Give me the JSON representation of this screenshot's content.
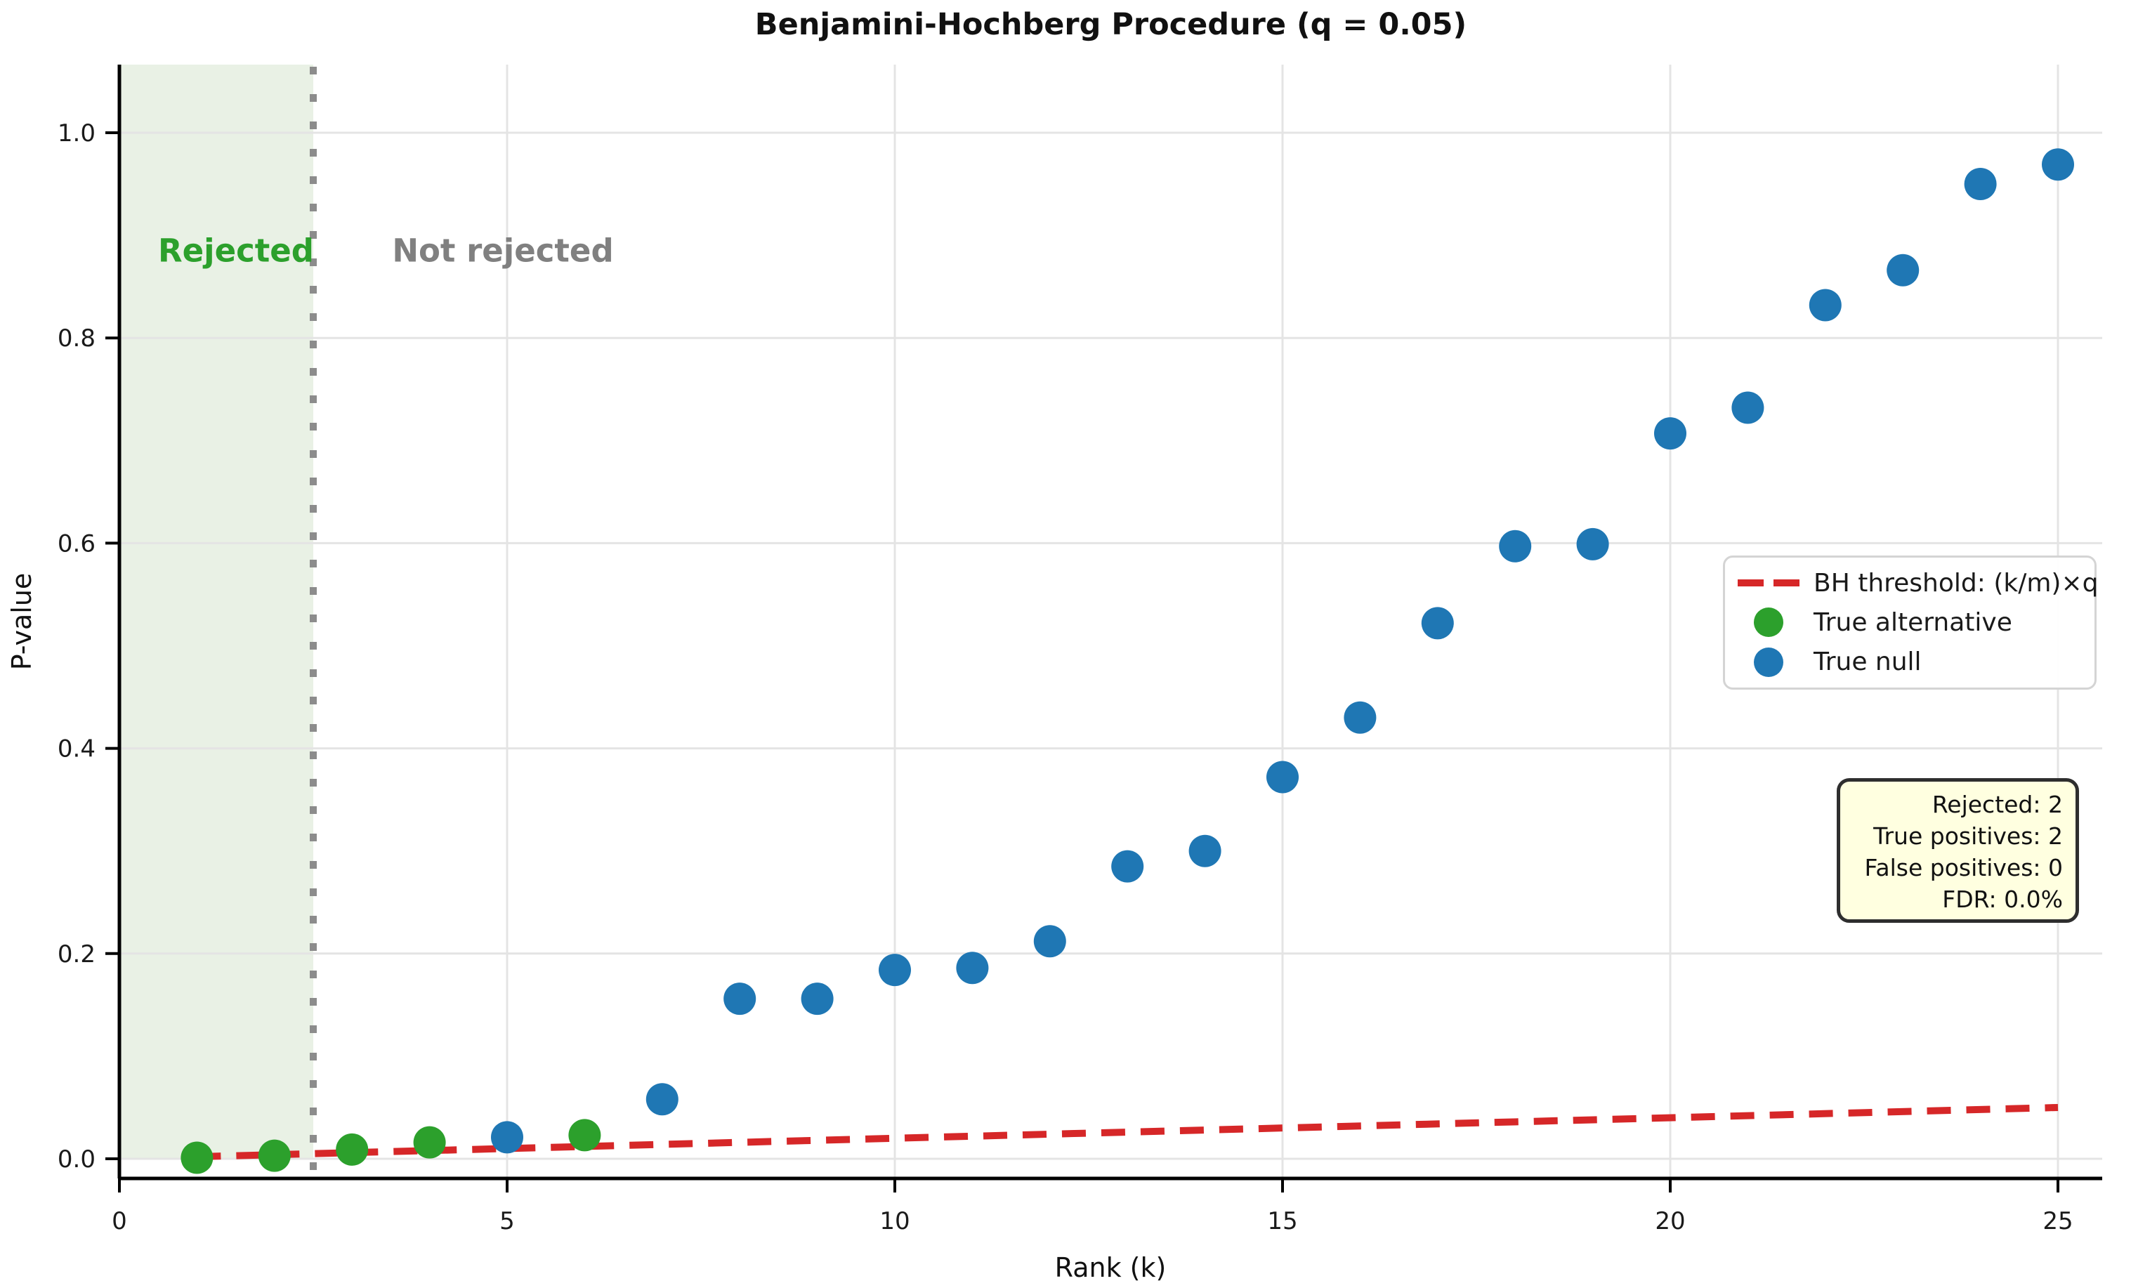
{
  "figure": {
    "title": "Benjamini-Hochberg Procedure (q = 0.05)"
  },
  "axes": {
    "xlabel": "Rank (k)",
    "ylabel": "P-value"
  },
  "chart_data": {
    "type": "scatter",
    "title": "Benjamini-Hochberg Procedure (q = 0.05)",
    "xlabel": "Rank (k)",
    "ylabel": "P-value",
    "x_tick_labels": [
      "0",
      "5",
      "10",
      "15",
      "20",
      "25"
    ],
    "x_tick_values": [
      0,
      5,
      10,
      15,
      20,
      25
    ],
    "y_tick_labels": [
      "0.0",
      "0.2",
      "0.4",
      "0.6",
      "0.8",
      "1.0"
    ],
    "y_tick_values": [
      0,
      0.2,
      0.4,
      0.6,
      0.8,
      1.0
    ],
    "xlim": [
      0,
      25.6
    ],
    "ylim": [
      -0.019,
      1.066
    ],
    "grid": true,
    "q": 0.05,
    "m": 25,
    "rejection_cutoff_k": 2.5,
    "series": [
      {
        "name": "True alternative",
        "color": "#2ca02c",
        "points": [
          {
            "k": 1,
            "p": 0.001
          },
          {
            "k": 2,
            "p": 0.003
          },
          {
            "k": 3,
            "p": 0.009
          },
          {
            "k": 4,
            "p": 0.016
          },
          {
            "k": 6,
            "p": 0.023
          }
        ]
      },
      {
        "name": "True null",
        "color": "#1f77b4",
        "points": [
          {
            "k": 5,
            "p": 0.021
          },
          {
            "k": 7,
            "p": 0.058
          },
          {
            "k": 8,
            "p": 0.156
          },
          {
            "k": 9,
            "p": 0.156
          },
          {
            "k": 10,
            "p": 0.184
          },
          {
            "k": 11,
            "p": 0.186
          },
          {
            "k": 12,
            "p": 0.212
          },
          {
            "k": 13,
            "p": 0.285
          },
          {
            "k": 14,
            "p": 0.3
          },
          {
            "k": 15,
            "p": 0.372
          },
          {
            "k": 16,
            "p": 0.43
          },
          {
            "k": 17,
            "p": 0.522
          },
          {
            "k": 18,
            "p": 0.597
          },
          {
            "k": 19,
            "p": 0.599
          },
          {
            "k": 20,
            "p": 0.707
          },
          {
            "k": 21,
            "p": 0.732
          },
          {
            "k": 22,
            "p": 0.832
          },
          {
            "k": 23,
            "p": 0.866
          },
          {
            "k": 24,
            "p": 0.95
          },
          {
            "k": 25,
            "p": 0.969
          }
        ]
      }
    ],
    "threshold_line": {
      "label": "BH threshold: (k/m)×q",
      "color": "#d62728",
      "from": {
        "k": 1,
        "p": 0.002
      },
      "to": {
        "k": 25,
        "p": 0.05
      }
    },
    "legend_position": "center right"
  },
  "regions": {
    "rejected_label": "Rejected",
    "not_rejected_label": "Not rejected",
    "rejected_color": "#2ca02c",
    "not_rejected_color": "#808080",
    "band_fill": "#e9f1e5",
    "cutoff_line_color": "#8c8c8c"
  },
  "legend": {
    "items": [
      {
        "label": "BH threshold: (k/m)×q",
        "marker": "dashed-line",
        "color": "#d62728"
      },
      {
        "label": "True alternative",
        "marker": "circle",
        "color": "#2ca02c"
      },
      {
        "label": "True null",
        "marker": "circle",
        "color": "#1f77b4"
      }
    ]
  },
  "stats_box": {
    "fill": "#ffffe0",
    "border": "#2e2e2e",
    "lines": [
      "Rejected: 2",
      "True positives: 2",
      "False positives: 0",
      "FDR: 0.0%"
    ]
  },
  "style": {
    "grid_color": "#e4e4e4",
    "spine_color": "#000000",
    "tick_label_color": "#1a1a1a"
  }
}
